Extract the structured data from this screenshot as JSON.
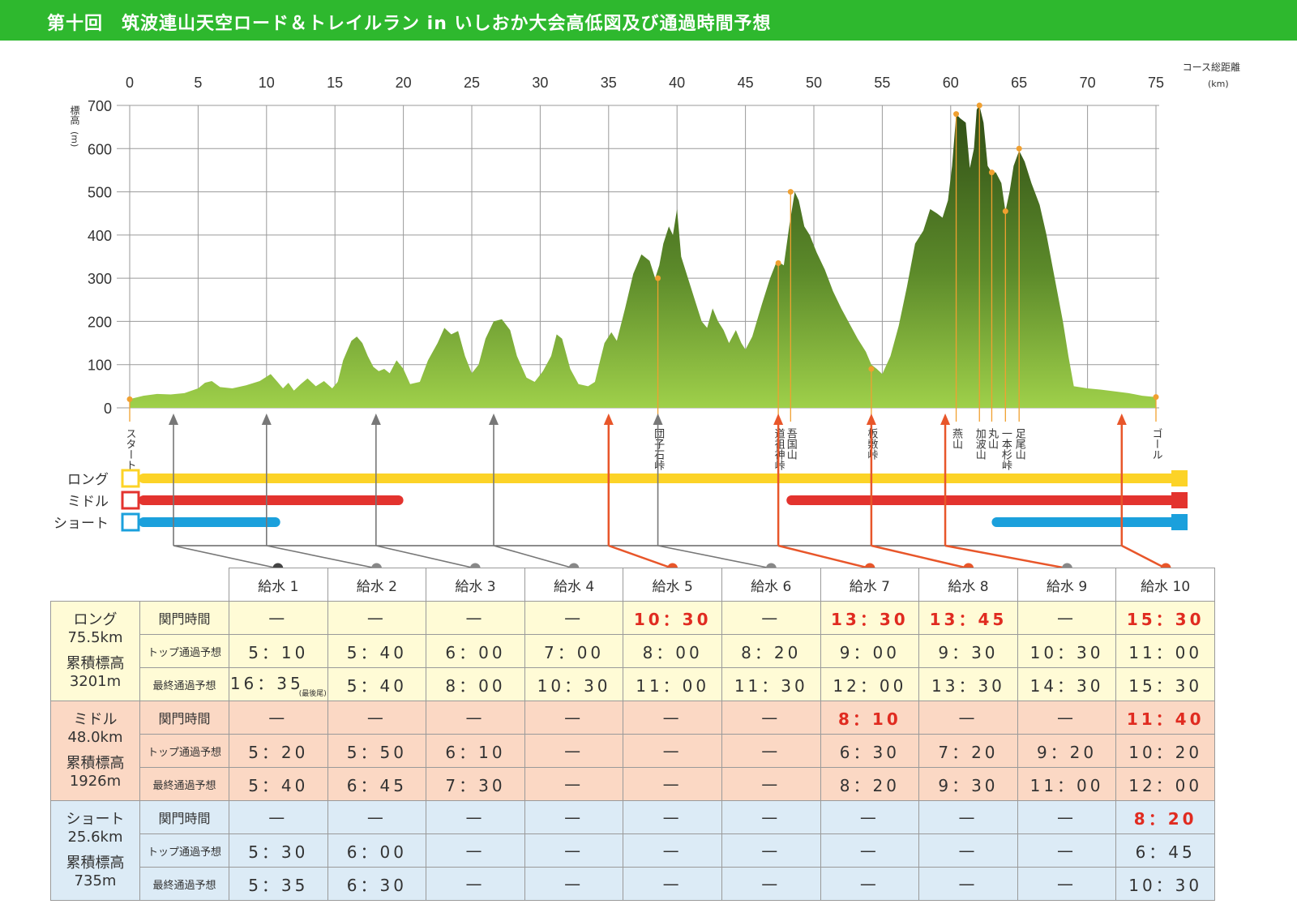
{
  "title": "第十回　筑波連山天空ロード＆トレイルラン in いしおか大会高低図及び通過時間予想",
  "chart_data": {
    "type": "area",
    "xlabel": "コース総距離",
    "xunit": "(km)",
    "ylabel": "標高",
    "yunit": "(m)",
    "xlim": [
      0,
      75
    ],
    "ylim": [
      0,
      700
    ],
    "x_ticks": [
      0,
      5,
      10,
      15,
      20,
      25,
      30,
      35,
      40,
      45,
      50,
      55,
      60,
      65,
      70,
      75
    ],
    "y_ticks": [
      0,
      100,
      200,
      300,
      400,
      500,
      600,
      700
    ],
    "grid": true,
    "profile": [
      [
        0,
        20
      ],
      [
        1,
        28
      ],
      [
        2,
        32
      ],
      [
        3,
        31
      ],
      [
        4,
        34
      ],
      [
        5,
        45
      ],
      [
        5.5,
        58
      ],
      [
        6,
        62
      ],
      [
        6.6,
        48
      ],
      [
        7.5,
        45
      ],
      [
        8.5,
        52
      ],
      [
        9.5,
        62
      ],
      [
        10.3,
        78
      ],
      [
        10.8,
        60
      ],
      [
        11.2,
        45
      ],
      [
        11.6,
        58
      ],
      [
        12,
        40
      ],
      [
        12.5,
        55
      ],
      [
        13,
        68
      ],
      [
        13.6,
        50
      ],
      [
        14.2,
        62
      ],
      [
        14.8,
        45
      ],
      [
        15.2,
        60
      ],
      [
        15.6,
        110
      ],
      [
        16.2,
        155
      ],
      [
        16.6,
        165
      ],
      [
        17,
        150
      ],
      [
        17.4,
        120
      ],
      [
        17.8,
        95
      ],
      [
        18.2,
        85
      ],
      [
        18.6,
        90
      ],
      [
        19,
        80
      ],
      [
        19.5,
        110
      ],
      [
        20,
        90
      ],
      [
        20.5,
        55
      ],
      [
        21.2,
        60
      ],
      [
        21.8,
        110
      ],
      [
        22.5,
        150
      ],
      [
        23,
        185
      ],
      [
        23.5,
        170
      ],
      [
        24,
        178
      ],
      [
        24.5,
        120
      ],
      [
        25,
        80
      ],
      [
        25.5,
        100
      ],
      [
        26,
        160
      ],
      [
        26.6,
        200
      ],
      [
        27.2,
        205
      ],
      [
        27.8,
        180
      ],
      [
        28.3,
        120
      ],
      [
        29,
        70
      ],
      [
        29.6,
        60
      ],
      [
        30.2,
        85
      ],
      [
        30.8,
        120
      ],
      [
        31.2,
        170
      ],
      [
        31.6,
        160
      ],
      [
        32.2,
        90
      ],
      [
        32.8,
        55
      ],
      [
        33.5,
        50
      ],
      [
        34,
        60
      ],
      [
        34.3,
        100
      ],
      [
        34.7,
        150
      ],
      [
        35.2,
        175
      ],
      [
        35.6,
        155
      ],
      [
        36.2,
        230
      ],
      [
        36.8,
        310
      ],
      [
        37.4,
        355
      ],
      [
        38,
        340
      ],
      [
        38.4,
        300
      ],
      [
        38.7,
        330
      ],
      [
        39,
        380
      ],
      [
        39.4,
        420
      ],
      [
        39.7,
        400
      ],
      [
        40,
        460
      ],
      [
        40.3,
        350
      ],
      [
        40.8,
        300
      ],
      [
        41.3,
        250
      ],
      [
        41.8,
        200
      ],
      [
        42.2,
        185
      ],
      [
        42.6,
        230
      ],
      [
        43,
        200
      ],
      [
        43.4,
        180
      ],
      [
        43.8,
        150
      ],
      [
        44.3,
        180
      ],
      [
        44.7,
        150
      ],
      [
        45,
        135
      ],
      [
        45.5,
        165
      ],
      [
        46.2,
        240
      ],
      [
        46.8,
        300
      ],
      [
        47.3,
        340
      ],
      [
        47.8,
        330
      ],
      [
        48.2,
        420
      ],
      [
        48.6,
        500
      ],
      [
        48.9,
        480
      ],
      [
        49.3,
        420
      ],
      [
        49.7,
        400
      ],
      [
        50.2,
        360
      ],
      [
        50.8,
        320
      ],
      [
        51.4,
        270
      ],
      [
        52,
        230
      ],
      [
        52.6,
        195
      ],
      [
        53.2,
        160
      ],
      [
        53.8,
        130
      ],
      [
        54.2,
        100
      ],
      [
        54.6,
        90
      ],
      [
        55,
        78
      ],
      [
        55.6,
        120
      ],
      [
        56.2,
        190
      ],
      [
        56.8,
        280
      ],
      [
        57.4,
        380
      ],
      [
        58,
        410
      ],
      [
        58.5,
        460
      ],
      [
        59,
        450
      ],
      [
        59.4,
        440
      ],
      [
        59.8,
        480
      ],
      [
        60.1,
        560
      ],
      [
        60.4,
        680
      ],
      [
        60.7,
        670
      ],
      [
        61.1,
        660
      ],
      [
        61.4,
        555
      ],
      [
        61.7,
        600
      ],
      [
        61.9,
        690
      ],
      [
        62.1,
        700
      ],
      [
        62.4,
        660
      ],
      [
        62.7,
        560
      ],
      [
        63,
        545
      ],
      [
        63.3,
        545
      ],
      [
        63.7,
        520
      ],
      [
        64,
        455
      ],
      [
        64.3,
        500
      ],
      [
        64.6,
        560
      ],
      [
        65,
        595
      ],
      [
        65.4,
        570
      ],
      [
        65.9,
        520
      ],
      [
        66.5,
        470
      ],
      [
        67,
        400
      ],
      [
        67.6,
        300
      ],
      [
        68.2,
        200
      ],
      [
        68.6,
        120
      ],
      [
        69,
        50
      ],
      [
        70,
        45
      ],
      [
        71,
        42
      ],
      [
        72,
        38
      ],
      [
        73,
        34
      ],
      [
        74,
        28
      ],
      [
        75,
        25
      ]
    ],
    "landmarks": [
      {
        "name": "スタート",
        "x": 0,
        "y": 20,
        "label_lines": [
          "スタート"
        ]
      },
      {
        "name": "団子石峠",
        "x": 38.6,
        "y": 300,
        "label_lines": [
          "団子石峠"
        ]
      },
      {
        "name": "道祖神峠",
        "x": 47.4,
        "y": 335,
        "label_lines": [
          "道祖神峠"
        ]
      },
      {
        "name": "吾国山",
        "x": 48.3,
        "y": 500,
        "label_lines": [
          "吾国山"
        ]
      },
      {
        "name": "板敷峠",
        "x": 54.2,
        "y": 90,
        "label_lines": [
          "板敷峠"
        ]
      },
      {
        "name": "燕山",
        "x": 60.4,
        "y": 680,
        "label_lines": [
          "燕山"
        ]
      },
      {
        "name": "加波山",
        "x": 62.1,
        "y": 700,
        "label_lines": [
          "加波山"
        ]
      },
      {
        "name": "丸山",
        "x": 63.0,
        "y": 545,
        "label_lines": [
          "丸山"
        ]
      },
      {
        "name": "一本杉峠",
        "x": 64.0,
        "y": 455,
        "label_lines": [
          "一本杉峠"
        ]
      },
      {
        "name": "足尾山",
        "x": 65.0,
        "y": 600,
        "label_lines": [
          "足尾山"
        ]
      },
      {
        "name": "ゴール",
        "x": 75,
        "y": 25,
        "label_lines": [
          "ゴール"
        ]
      }
    ],
    "aid_station_km": [
      3.2,
      10,
      18,
      26.6,
      35,
      38.6,
      47.4,
      54.2,
      59.6,
      72.5
    ],
    "aid_station_cutoff": [
      false,
      false,
      false,
      false,
      true,
      false,
      true,
      true,
      true,
      true
    ],
    "courses": [
      {
        "name": "ロング",
        "color": "#fcd327",
        "segments": [
          [
            0,
            75
          ]
        ]
      },
      {
        "name": "ミドル",
        "color": "#e3332e",
        "segments": [
          [
            0,
            20
          ],
          [
            48,
            75
          ]
        ]
      },
      {
        "name": "ショート",
        "color": "#1ba0dc",
        "segments": [
          [
            0,
            11
          ],
          [
            63,
            75
          ]
        ]
      }
    ],
    "course_label_lines": [
      "ロング",
      "ミドル",
      "ショート"
    ]
  },
  "table": {
    "aid_stations": [
      "給水 1",
      "給水 2",
      "給水 3",
      "給水 4",
      "給水 5",
      "給水 6",
      "給水 7",
      "給水 8",
      "給水 9",
      "給水 10"
    ],
    "dot_colors": [
      "#444444",
      "#888888",
      "#888888",
      "#888888",
      "#e8562a",
      "#888888",
      "#e8562a",
      "#e8562a",
      "#888888",
      "#e8562a"
    ],
    "row_labels": [
      "関門時間",
      "トップ通過予想",
      "最終通過予想"
    ],
    "note_last_runner": "(最後尾)",
    "courses": [
      {
        "id": "long",
        "line1": "ロング",
        "line2": "75.5km",
        "line3": "累積標高",
        "line4": "3201m",
        "rows": [
          [
            "—",
            "—",
            "—",
            "—",
            "10：30",
            "—",
            "13：30",
            "13：45",
            "—",
            "15：30"
          ],
          [
            "5：10",
            "5：40",
            "6：00",
            "7：00",
            "8：00",
            "8：20",
            "9：00",
            "9：30",
            "10：30",
            "11：00"
          ],
          [
            "16：35",
            "5：40",
            "8：00",
            "10：30",
            "11：00",
            "11：30",
            "12：00",
            "13：30",
            "14：30",
            "15：30"
          ]
        ]
      },
      {
        "id": "mid",
        "line1": "ミドル",
        "line2": "48.0km",
        "line3": "累積標高",
        "line4": "1926m",
        "rows": [
          [
            "—",
            "—",
            "—",
            "—",
            "—",
            "—",
            "8：10",
            "—",
            "—",
            "11：40"
          ],
          [
            "5：20",
            "5：50",
            "6：10",
            "—",
            "—",
            "—",
            "6：30",
            "7：20",
            "9：20",
            "10：20"
          ],
          [
            "5：40",
            "6：45",
            "7：30",
            "—",
            "—",
            "—",
            "8：20",
            "9：30",
            "11：00",
            "12：00"
          ]
        ]
      },
      {
        "id": "short",
        "line1": "ショート",
        "line2": "25.6km",
        "line3": "累積標高",
        "line4": "735m",
        "rows": [
          [
            "—",
            "—",
            "—",
            "—",
            "—",
            "—",
            "—",
            "—",
            "—",
            "8：20"
          ],
          [
            "5：30",
            "6：00",
            "—",
            "—",
            "—",
            "—",
            "—",
            "—",
            "—",
            "6：45"
          ],
          [
            "5：35",
            "6：30",
            "—",
            "—",
            "—",
            "—",
            "—",
            "—",
            "—",
            "10：30"
          ]
        ]
      }
    ]
  },
  "colors": {
    "title_bg": "#2eb82e",
    "area_top": "#3d5e1e",
    "area_bottom": "#8cc63f",
    "landmark": "#f0a030",
    "cutoff": "#e8562a",
    "connector": "#666666"
  }
}
